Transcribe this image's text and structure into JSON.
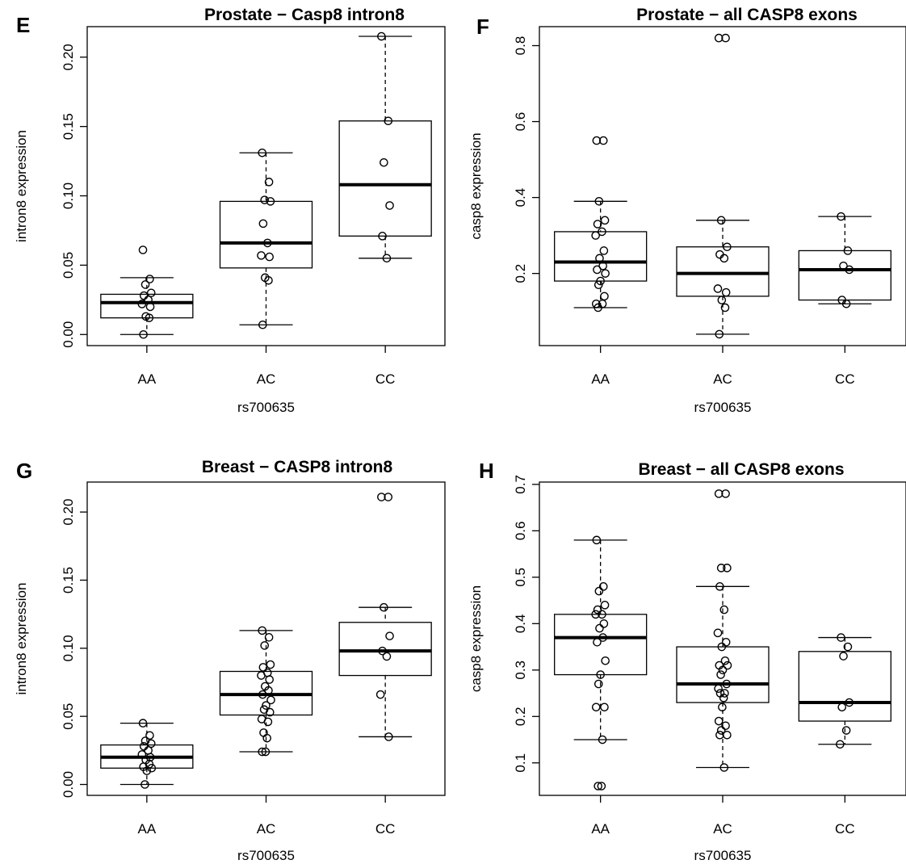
{
  "chart_data": [
    {
      "type": "box",
      "panel_letter": "E",
      "title": "Prostate − Casp8 intron8",
      "xlabel": "rs700635",
      "ylabel": "intron8 expression",
      "categories": [
        "AA",
        "AC",
        "CC"
      ],
      "yticks": [
        "0.00",
        "0.05",
        "0.10",
        "0.15",
        "0.20"
      ],
      "ylim": [
        -0.008,
        0.222
      ],
      "boxes": [
        {
          "category": "AA",
          "whisker_low": 0.0,
          "q1": 0.012,
          "median": 0.023,
          "q3": 0.029,
          "whisker_high": 0.041
        },
        {
          "category": "AC",
          "whisker_low": 0.007,
          "q1": 0.048,
          "median": 0.066,
          "q3": 0.096,
          "whisker_high": 0.131
        },
        {
          "category": "CC",
          "whisker_low": 0.055,
          "q1": 0.071,
          "median": 0.108,
          "q3": 0.154,
          "whisker_high": 0.215
        }
      ],
      "points": [
        {
          "category": "AA",
          "values": [
            0.061,
            0.04,
            0.036,
            0.03,
            0.028,
            0.025,
            0.022,
            0.02,
            0.013,
            0.012,
            0.0
          ]
        },
        {
          "category": "AC",
          "values": [
            0.131,
            0.11,
            0.097,
            0.096,
            0.08,
            0.066,
            0.057,
            0.056,
            0.041,
            0.039,
            0.007
          ]
        },
        {
          "category": "CC",
          "values": [
            0.215,
            0.154,
            0.124,
            0.093,
            0.071,
            0.055
          ]
        }
      ]
    },
    {
      "type": "box",
      "panel_letter": "F",
      "title": "Prostate − all CASP8 exons",
      "xlabel": "rs700635",
      "ylabel": "casp8 expression",
      "categories": [
        "AA",
        "AC",
        "CC"
      ],
      "yticks": [
        "0.2",
        "0.4",
        "0.6",
        "0.8"
      ],
      "ylim": [
        0.01,
        0.85
      ],
      "boxes": [
        {
          "category": "AA",
          "whisker_low": 0.11,
          "q1": 0.18,
          "median": 0.23,
          "q3": 0.31,
          "whisker_high": 0.39
        },
        {
          "category": "AC",
          "whisker_low": 0.04,
          "q1": 0.14,
          "median": 0.2,
          "q3": 0.27,
          "whisker_high": 0.34
        },
        {
          "category": "CC",
          "whisker_low": 0.12,
          "q1": 0.13,
          "median": 0.21,
          "q3": 0.26,
          "whisker_high": 0.35
        }
      ],
      "points": [
        {
          "category": "AA",
          "values": [
            0.55,
            0.55,
            0.39,
            0.34,
            0.33,
            0.31,
            0.3,
            0.26,
            0.24,
            0.22,
            0.21,
            0.2,
            0.18,
            0.17,
            0.14,
            0.12,
            0.12,
            0.11
          ]
        },
        {
          "category": "AC",
          "values": [
            0.82,
            0.82,
            0.34,
            0.27,
            0.25,
            0.24,
            0.16,
            0.15,
            0.13,
            0.11,
            0.04
          ]
        },
        {
          "category": "CC",
          "values": [
            0.35,
            0.26,
            0.22,
            0.21,
            0.13,
            0.12
          ]
        }
      ]
    },
    {
      "type": "box",
      "panel_letter": "G",
      "title": "Breast − CASP8 intron8",
      "xlabel": "rs700635",
      "ylabel": "intron8 expression",
      "categories": [
        "AA",
        "AC",
        "CC"
      ],
      "yticks": [
        "0.00",
        "0.05",
        "0.10",
        "0.15",
        "0.20"
      ],
      "ylim": [
        -0.008,
        0.222
      ],
      "boxes": [
        {
          "category": "AA",
          "whisker_low": 0.0,
          "q1": 0.012,
          "median": 0.02,
          "q3": 0.029,
          "whisker_high": 0.045
        },
        {
          "category": "AC",
          "whisker_low": 0.024,
          "q1": 0.051,
          "median": 0.066,
          "q3": 0.083,
          "whisker_high": 0.113
        },
        {
          "category": "CC",
          "whisker_low": 0.035,
          "q1": 0.08,
          "median": 0.098,
          "q3": 0.119,
          "whisker_high": 0.13
        }
      ],
      "points": [
        {
          "category": "AA",
          "values": [
            0.045,
            0.036,
            0.032,
            0.03,
            0.028,
            0.025,
            0.022,
            0.02,
            0.018,
            0.015,
            0.013,
            0.012,
            0.01,
            0.0
          ]
        },
        {
          "category": "AC",
          "values": [
            0.113,
            0.108,
            0.102,
            0.088,
            0.086,
            0.082,
            0.08,
            0.077,
            0.072,
            0.069,
            0.066,
            0.062,
            0.058,
            0.055,
            0.053,
            0.048,
            0.046,
            0.038,
            0.034,
            0.024,
            0.024
          ]
        },
        {
          "category": "CC",
          "values": [
            0.211,
            0.211,
            0.13,
            0.109,
            0.098,
            0.094,
            0.066,
            0.035
          ]
        }
      ]
    },
    {
      "type": "box",
      "panel_letter": "H",
      "title": "Breast − all CASP8 exons",
      "xlabel": "rs700635",
      "ylabel": "casp8 expression",
      "categories": [
        "AA",
        "AC",
        "CC"
      ],
      "yticks": [
        "0.1",
        "0.2",
        "0.3",
        "0.4",
        "0.5",
        "0.6",
        "0.7"
      ],
      "ylim": [
        0.03,
        0.705
      ],
      "boxes": [
        {
          "category": "AA",
          "whisker_low": 0.15,
          "q1": 0.29,
          "median": 0.37,
          "q3": 0.42,
          "whisker_high": 0.58
        },
        {
          "category": "AC",
          "whisker_low": 0.09,
          "q1": 0.23,
          "median": 0.27,
          "q3": 0.35,
          "whisker_high": 0.48
        },
        {
          "category": "CC",
          "whisker_low": 0.14,
          "q1": 0.19,
          "median": 0.23,
          "q3": 0.34,
          "whisker_high": 0.37
        }
      ],
      "points": [
        {
          "category": "AA",
          "values": [
            0.58,
            0.48,
            0.47,
            0.44,
            0.43,
            0.42,
            0.42,
            0.4,
            0.39,
            0.37,
            0.36,
            0.32,
            0.29,
            0.27,
            0.22,
            0.22,
            0.15,
            0.05,
            0.05
          ]
        },
        {
          "category": "AC",
          "values": [
            0.68,
            0.68,
            0.52,
            0.52,
            0.48,
            0.43,
            0.38,
            0.36,
            0.35,
            0.32,
            0.31,
            0.31,
            0.3,
            0.29,
            0.27,
            0.26,
            0.25,
            0.25,
            0.24,
            0.22,
            0.19,
            0.18,
            0.17,
            0.16,
            0.16,
            0.09
          ]
        },
        {
          "category": "CC",
          "values": [
            0.37,
            0.35,
            0.33,
            0.23,
            0.22,
            0.17,
            0.14
          ]
        }
      ]
    }
  ]
}
